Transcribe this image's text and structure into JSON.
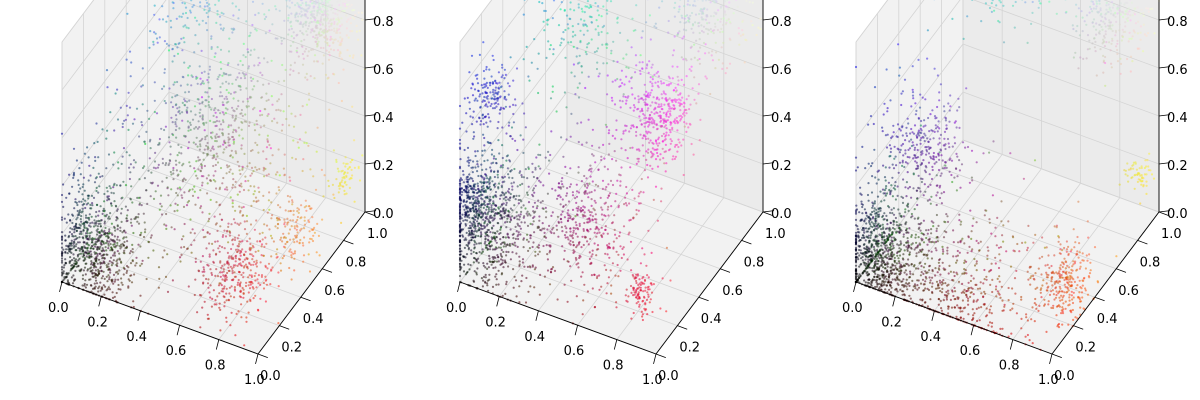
{
  "chart_data": [
    {
      "type": "scatter",
      "projection": "3d",
      "title": "",
      "xlabel": "",
      "ylabel": "",
      "zlabel": "",
      "xlim": [
        0,
        1
      ],
      "ylim": [
        0,
        1
      ],
      "zlim": [
        0,
        1
      ],
      "x_ticks": [
        "0.0",
        "0.2",
        "0.4",
        "0.6",
        "0.8",
        "1.0"
      ],
      "y_ticks": [
        "0.0",
        "0.2",
        "0.4",
        "0.6",
        "0.8",
        "1.0"
      ],
      "z_ticks": [
        "0.0",
        "0.2",
        "0.4",
        "0.6",
        "0.8",
        "1.0"
      ],
      "grid": true,
      "color_encoding": "rgb",
      "clusters": [
        {
          "center": [
            0.1,
            0.1,
            0.12
          ],
          "spread": 0.18,
          "count": 900
        },
        {
          "center": [
            0.5,
            0.5,
            0.5
          ],
          "spread": 0.3,
          "count": 900
        },
        {
          "center": [
            0.85,
            0.85,
            0.85
          ],
          "spread": 0.12,
          "count": 500
        },
        {
          "center": [
            0.8,
            0.15,
            0.2
          ],
          "spread": 0.12,
          "count": 350
        },
        {
          "center": [
            0.9,
            0.5,
            0.2
          ],
          "spread": 0.1,
          "count": 150
        },
        {
          "center": [
            0.3,
            0.7,
            0.9
          ],
          "spread": 0.15,
          "count": 200
        },
        {
          "center": [
            0.95,
            0.9,
            0.2
          ],
          "spread": 0.05,
          "count": 60
        }
      ]
    },
    {
      "type": "scatter",
      "projection": "3d",
      "title": "",
      "xlabel": "",
      "ylabel": "",
      "zlabel": "",
      "xlim": [
        0,
        1
      ],
      "ylim": [
        0,
        1
      ],
      "zlim": [
        0,
        1
      ],
      "x_ticks": [
        "0.0",
        "0.2",
        "0.4",
        "0.6",
        "0.8",
        "1.0"
      ],
      "y_ticks": [
        "0.0",
        "0.2",
        "0.4",
        "0.6",
        "0.8",
        "1.0"
      ],
      "z_ticks": [
        "0.0",
        "0.2",
        "0.4",
        "0.6",
        "0.8",
        "1.0"
      ],
      "grid": true,
      "color_encoding": "rgb",
      "clusters": [
        {
          "center": [
            0.08,
            0.08,
            0.25
          ],
          "spread": 0.2,
          "count": 1100
        },
        {
          "center": [
            0.9,
            0.2,
            0.85
          ],
          "spread": 0.15,
          "count": 450
        },
        {
          "center": [
            0.6,
            0.05,
            0.4
          ],
          "spread": 0.2,
          "count": 450
        },
        {
          "center": [
            0.2,
            0.8,
            0.7
          ],
          "spread": 0.2,
          "count": 250
        },
        {
          "center": [
            0.8,
            0.85,
            0.9
          ],
          "spread": 0.15,
          "count": 350
        },
        {
          "center": [
            0.9,
            0.05,
            0.2
          ],
          "spread": 0.06,
          "count": 100
        },
        {
          "center": [
            0.1,
            0.1,
            0.75
          ],
          "spread": 0.08,
          "count": 150
        }
      ]
    },
    {
      "type": "scatter",
      "projection": "3d",
      "title": "",
      "xlabel": "",
      "ylabel": "",
      "zlabel": "",
      "xlim": [
        0,
        1
      ],
      "ylim": [
        0,
        1
      ],
      "zlim": [
        0,
        1
      ],
      "x_ticks": [
        "0.0",
        "0.2",
        "0.4",
        "0.6",
        "0.8",
        "1.0"
      ],
      "y_ticks": [
        "0.0",
        "0.2",
        "0.4",
        "0.6",
        "0.8",
        "1.0"
      ],
      "z_ticks": [
        "0.0",
        "0.2",
        "0.4",
        "0.6",
        "0.8",
        "1.0"
      ],
      "grid": true,
      "color_encoding": "rgb",
      "clusters": [
        {
          "center": [
            0.08,
            0.08,
            0.1
          ],
          "spread": 0.18,
          "count": 1000
        },
        {
          "center": [
            0.5,
            0.05,
            0.05
          ],
          "spread": 0.25,
          "count": 450
        },
        {
          "center": [
            0.9,
            0.3,
            0.1
          ],
          "spread": 0.12,
          "count": 300
        },
        {
          "center": [
            0.3,
            0.1,
            0.6
          ],
          "spread": 0.15,
          "count": 300
        },
        {
          "center": [
            0.3,
            0.85,
            0.9
          ],
          "spread": 0.15,
          "count": 250
        },
        {
          "center": [
            0.85,
            0.85,
            0.85
          ],
          "spread": 0.12,
          "count": 300
        },
        {
          "center": [
            0.95,
            0.9,
            0.2
          ],
          "spread": 0.05,
          "count": 60
        }
      ]
    }
  ]
}
